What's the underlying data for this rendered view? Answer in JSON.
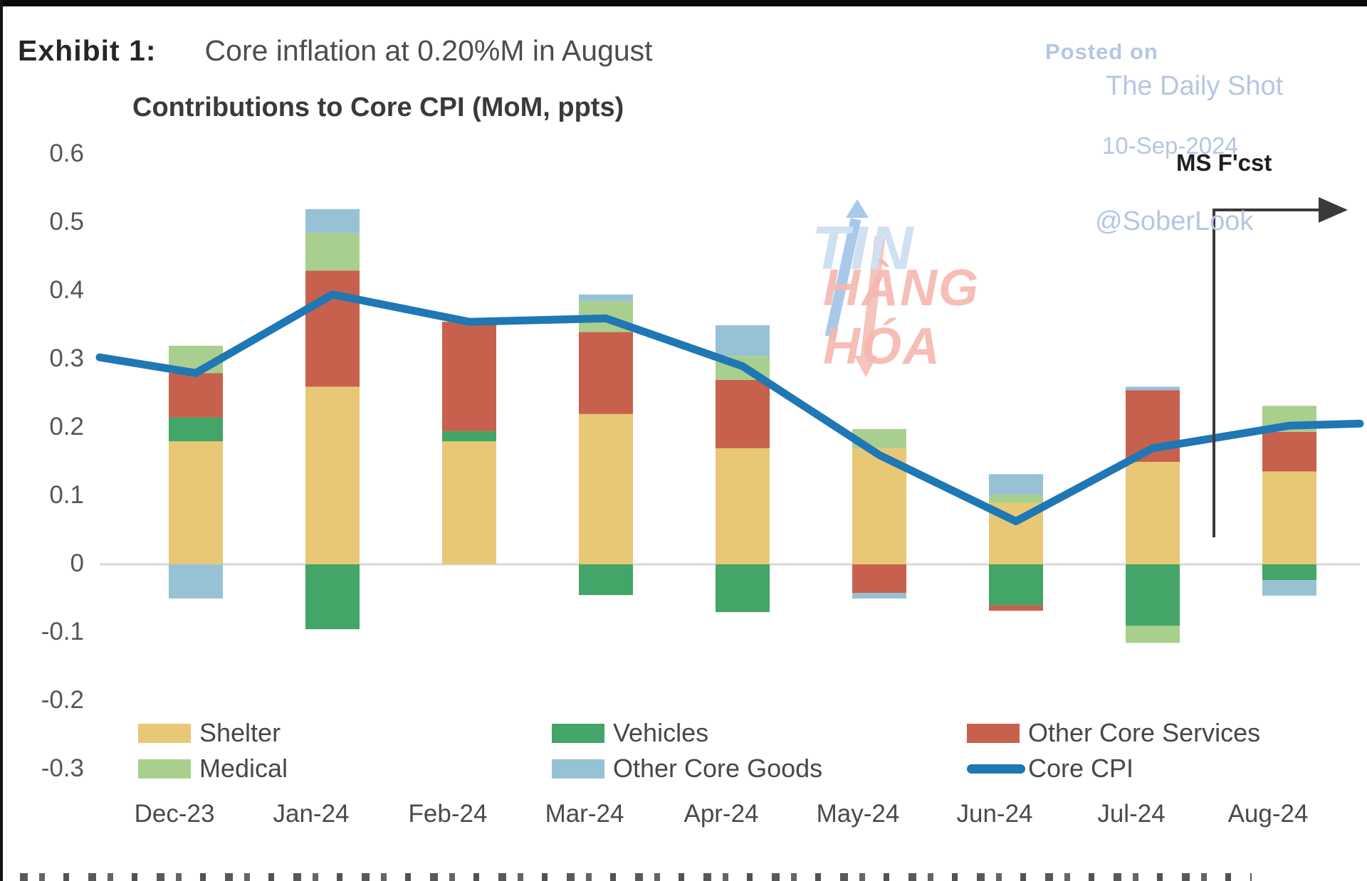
{
  "page": {
    "exhibit_label": "Exhibit 1:",
    "exhibit_title": "Core inflation at 0.20%M in August"
  },
  "watermark": {
    "posted_on": "Posted on",
    "source": "The Daily Shot",
    "date": "10-Sep-2024",
    "handle": "@SoberLook",
    "logo_line1": "TIN",
    "logo_line2": "HÀNG HÓA"
  },
  "annotation": {
    "label": "MS F'cst"
  },
  "colors": {
    "shelter": "#e8c876",
    "vehicles": "#43a567",
    "other_core_services": "#c7604c",
    "medical": "#a9cf8e",
    "other_core_goods": "#97c2d5",
    "core_cpi_line": "#1f77b4",
    "gridline": "#d8d8d8",
    "annotation_arrow": "#3a3a3a",
    "logo_blue_arrow": "#a9c9ea",
    "logo_pink_arrow": "#f6c3bd"
  },
  "chart_data": {
    "type": "bar",
    "subtype": "stacked bars with line overlay",
    "title": "Contributions to Core CPI (MoM, ppts)",
    "categories": [
      "Dec-23",
      "Jan-24",
      "Feb-24",
      "Mar-24",
      "Apr-24",
      "May-24",
      "Jun-24",
      "Jul-24",
      "Aug-24"
    ],
    "series": [
      {
        "name": "Shelter",
        "color_key": "shelter",
        "values": [
          0.18,
          0.26,
          0.18,
          0.22,
          0.17,
          0.17,
          0.09,
          0.15,
          0.136
        ]
      },
      {
        "name": "Vehicles",
        "color_key": "vehicles",
        "values": [
          0.035,
          -0.095,
          0.015,
          -0.045,
          -0.07,
          0.0,
          -0.06,
          -0.09,
          -0.023
        ]
      },
      {
        "name": "Other Core Services",
        "color_key": "other_core_services",
        "values": [
          0.065,
          0.17,
          0.16,
          0.12,
          0.1,
          -0.042,
          -0.008,
          0.105,
          0.058
        ]
      },
      {
        "name": "Medical",
        "color_key": "medical",
        "values": [
          0.04,
          0.055,
          0.0,
          0.045,
          0.035,
          0.028,
          0.012,
          -0.025,
          0.038
        ]
      },
      {
        "name": "Other Core Goods",
        "color_key": "other_core_goods",
        "values": [
          -0.05,
          0.035,
          0.0,
          0.01,
          0.045,
          -0.008,
          0.03,
          0.005,
          -0.023
        ]
      }
    ],
    "line_series": {
      "name": "Core CPI",
      "color_key": "core_cpi_line",
      "values": [
        0.28,
        0.395,
        0.355,
        0.36,
        0.29,
        0.16,
        0.063,
        0.17,
        0.203
      ],
      "edge_values": {
        "left": 0.303,
        "right": 0.206
      }
    },
    "ylim": [
      -0.3,
      0.6
    ],
    "yticks": [
      {
        "value": 0.6,
        "label": "0.6"
      },
      {
        "value": 0.5,
        "label": "0.5"
      },
      {
        "value": 0.4,
        "label": "0.4"
      },
      {
        "value": 0.3,
        "label": "0.3"
      },
      {
        "value": 0.2,
        "label": "0.2"
      },
      {
        "value": 0.1,
        "label": "0.1"
      },
      {
        "value": 0.0,
        "label": "0"
      },
      {
        "value": -0.1,
        "label": "-0.1"
      },
      {
        "value": -0.2,
        "label": "-0.2"
      },
      {
        "value": -0.3,
        "label": "-0.3"
      }
    ],
    "grid": "horizontal zero line only",
    "legend_position": "inside bottom, two rows, three columns",
    "legend_rows": [
      [
        {
          "label": "Shelter",
          "color_key": "shelter",
          "type": "swatch"
        },
        {
          "label": "Vehicles",
          "color_key": "vehicles",
          "type": "swatch"
        },
        {
          "label": "Other Core Services",
          "color_key": "other_core_services",
          "type": "swatch"
        }
      ],
      [
        {
          "label": "Medical",
          "color_key": "medical",
          "type": "swatch"
        },
        {
          "label": "Other Core Goods",
          "color_key": "other_core_goods",
          "type": "swatch"
        },
        {
          "label": "Core CPI",
          "color_key": "core_cpi_line",
          "type": "line"
        }
      ]
    ],
    "annotation": {
      "label": "MS F'cst",
      "points_to": "Aug-24 forecast bar"
    }
  }
}
